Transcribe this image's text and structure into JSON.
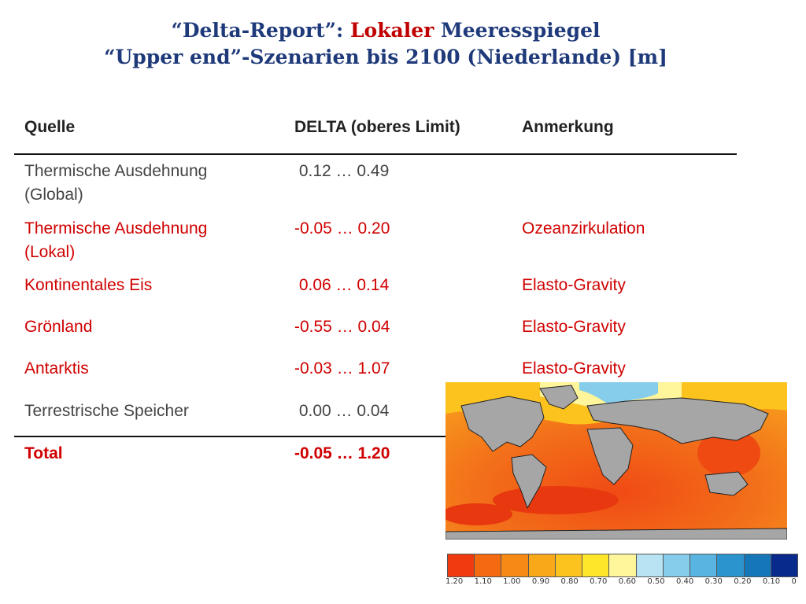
{
  "title": {
    "line1_a": "“Delta-Report”: ",
    "line1_red": "Lokaler",
    "line1_b": " Meeresspiegel",
    "line2": "“Upper end”-Szenarien bis 2100 (Niederlande) [m]"
  },
  "table": {
    "headers": [
      "Quelle",
      "DELTA (oberes Limit)",
      "Anmerkung"
    ],
    "rows": [
      {
        "source": "Thermische Ausdehnung",
        "source2": "(Global)",
        "delta": " 0.12 … 0.49",
        "note": ""
      },
      {
        "source": "Thermische Ausdehnung",
        "source2": "(Lokal)",
        "delta": "-0.05 … 0.20",
        "note": "Ozeanzirkulation"
      },
      {
        "source": "Kontinentales Eis",
        "source2": "",
        "delta": " 0.06 … 0.14",
        "note": "Elasto-Gravity"
      },
      {
        "source": "Grönland",
        "source2": "",
        "delta": "-0.55 … 0.04",
        "note": "Elasto-Gravity"
      },
      {
        "source": "Antarktis",
        "source2": "",
        "delta": "-0.03 … 1.07",
        "note": "Elasto-Gravity"
      },
      {
        "source": "Terrestrische Speicher",
        "source2": "",
        "delta": " 0.00 … 0.04",
        "note": ""
      }
    ],
    "total": {
      "source": "Total",
      "delta": "-0.05 … 1.20"
    }
  },
  "colorbar": {
    "colors": [
      "#f03a0f",
      "#f36a10",
      "#f68a14",
      "#f9a81a",
      "#fcc21e",
      "#fee62a",
      "#fff59a",
      "#b7e3f2",
      "#86cdeb",
      "#5ab4e1",
      "#2b94cf",
      "#1677b8",
      "#072a8c"
    ],
    "labels": [
      "1.20",
      "1.10",
      "1.00",
      "0.90",
      "0.80",
      "0.70",
      "0.60",
      "0.50",
      "0.40",
      "0.30",
      "0.20",
      "0.10",
      "0"
    ]
  }
}
